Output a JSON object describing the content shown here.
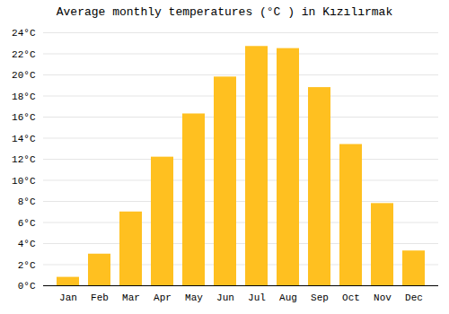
{
  "chart_data": {
    "type": "bar",
    "title": "Average monthly temperatures (°C ) in Kızılırmak",
    "categories": [
      "Jan",
      "Feb",
      "Mar",
      "Apr",
      "May",
      "Jun",
      "Jul",
      "Aug",
      "Sep",
      "Oct",
      "Nov",
      "Dec"
    ],
    "values": [
      0.8,
      3.0,
      7.0,
      12.2,
      16.3,
      19.8,
      22.7,
      22.5,
      18.8,
      13.4,
      7.8,
      3.3
    ],
    "color": "#FFC020",
    "ylim": [
      0,
      24
    ],
    "yticks": [
      {
        "value": 0,
        "label": "0°C"
      },
      {
        "value": 2,
        "label": "2°C"
      },
      {
        "value": 4,
        "label": "4°C"
      },
      {
        "value": 6,
        "label": "6°C"
      },
      {
        "value": 8,
        "label": "8°C"
      },
      {
        "value": 10,
        "label": "10°C"
      },
      {
        "value": 12,
        "label": "12°C"
      },
      {
        "value": 14,
        "label": "14°C"
      },
      {
        "value": 16,
        "label": "16°C"
      },
      {
        "value": 18,
        "label": "18°C"
      },
      {
        "value": 20,
        "label": "20°C"
      },
      {
        "value": 22,
        "label": "22°C"
      },
      {
        "value": 24,
        "label": "24°C"
      }
    ],
    "grid": true
  }
}
